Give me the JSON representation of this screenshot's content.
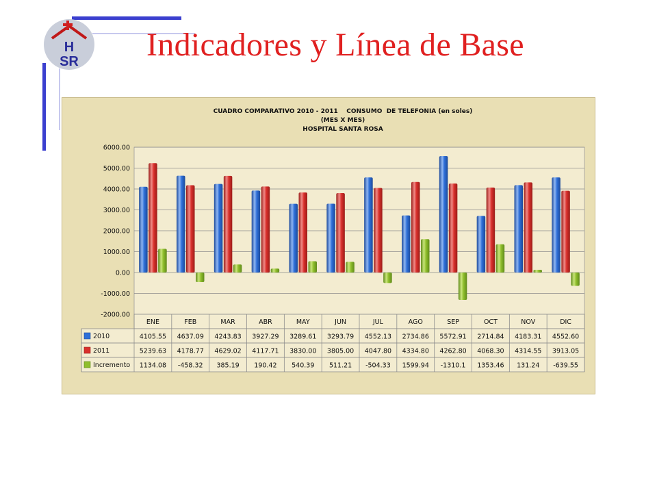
{
  "slide": {
    "title": "Indicadores y Línea de Base",
    "logo_text": "HSR"
  },
  "colors": {
    "title_red": "#e02020",
    "accent_blue": "#3b3fcf",
    "panel_bg": "#e9dfb4",
    "series_2010": "#2e6fd8",
    "series_2011": "#d9302c",
    "series_incremento": "#8fbe2c"
  },
  "chart_data": {
    "type": "bar",
    "title": [
      "CUADRO COMPARATIVO 2010 - 2011    CONSUMO  DE TELEFONIA (en soles)",
      "(MES X MES)",
      "HOSPITAL SANTA ROSA"
    ],
    "categories": [
      "ENE",
      "FEB",
      "MAR",
      "ABR",
      "MAY",
      "JUN",
      "JUL",
      "AGO",
      "SEP",
      "OCT",
      "NOV",
      "DIC"
    ],
    "series": [
      {
        "name": "2010",
        "values": [
          4105.55,
          4637.09,
          4243.83,
          3927.29,
          3289.61,
          3293.79,
          4552.13,
          2734.86,
          5572.91,
          2714.84,
          4183.31,
          4552.6
        ],
        "labels": [
          "4105.55",
          "4637.09",
          "4243.83",
          "3927.29",
          "3289.61",
          "3293.79",
          "4552.13",
          "2734.86",
          "5572.91",
          "2714.84",
          "4183.31",
          "4552.60"
        ]
      },
      {
        "name": "2011",
        "values": [
          5239.63,
          4178.77,
          4629.02,
          4117.71,
          3830.0,
          3805.0,
          4047.8,
          4334.8,
          4262.8,
          4068.3,
          4314.55,
          3913.05
        ],
        "labels": [
          "5239.63",
          "4178.77",
          "4629.02",
          "4117.71",
          "3830.00",
          "3805.00",
          "4047.80",
          "4334.80",
          "4262.80",
          "4068.30",
          "4314.55",
          "3913.05"
        ]
      },
      {
        "name": "Incremento",
        "values": [
          1134.08,
          -458.32,
          385.19,
          190.42,
          540.39,
          511.21,
          -504.33,
          1599.94,
          -1310.1,
          1353.46,
          131.24,
          -639.55
        ],
        "labels": [
          "1134.08",
          "-458.32",
          "385.19",
          "190.42",
          "540.39",
          "511.21",
          "-504.33",
          "1599.94",
          "-1310.1",
          "1353.46",
          "131.24",
          "-639.55"
        ]
      }
    ],
    "y_ticks": [
      "6000.00",
      "5000.00",
      "4000.00",
      "3000.00",
      "2000.00",
      "1000.00",
      "0.00",
      "-1000.00",
      "-2000.00"
    ],
    "ylim": [
      -2000,
      6000
    ],
    "grid": true,
    "legend": "data-table"
  }
}
